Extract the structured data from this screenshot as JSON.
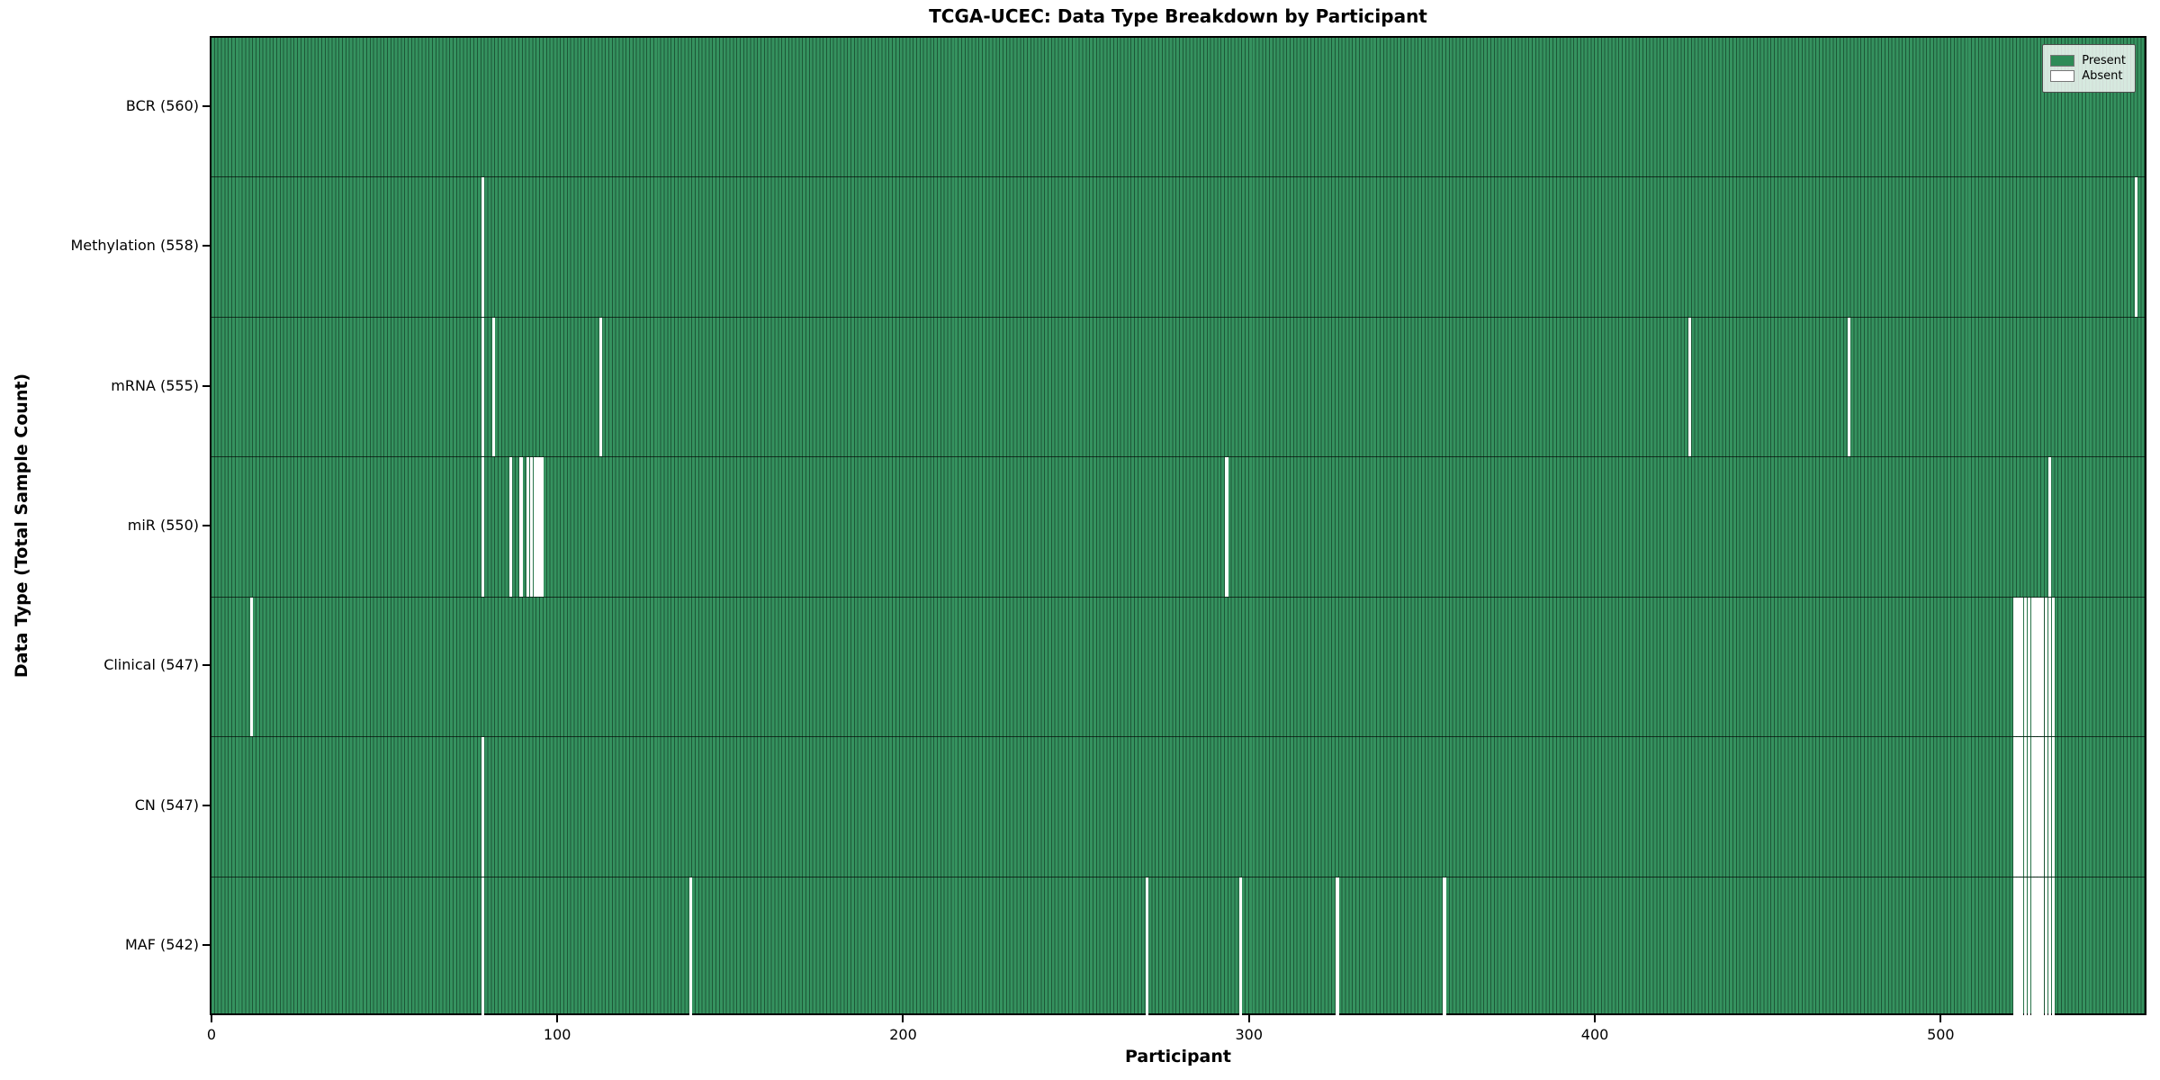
{
  "figure": {
    "title": "TCGA-UCEC: Data Type Breakdown by Participant",
    "xlabel": "Participant",
    "ylabel": "Data Type (Total Sample Count)"
  },
  "legend": {
    "position": "upper right",
    "items": [
      {
        "name": "present",
        "label": "Present",
        "color": "#2e8b57"
      },
      {
        "name": "absent",
        "label": "Absent",
        "color": "#ffffff"
      }
    ]
  },
  "chart_data": {
    "type": "heatmap",
    "title": "TCGA-UCEC: Data Type Breakdown by Participant",
    "xlabel": "Participant",
    "ylabel": "Data Type (Total Sample Count)",
    "x_ticks": [
      0,
      100,
      200,
      300,
      400,
      500
    ],
    "xlim": [
      -0.5,
      559.5
    ],
    "n_participants": 560,
    "grid": false,
    "colors": {
      "present": "#2e8b57",
      "absent": "#ffffff",
      "bar_edge": "#000000"
    },
    "legend_entries": [
      "Present",
      "Absent"
    ],
    "rows": [
      {
        "label": "BCR",
        "total": 560,
        "tick_label": "BCR (560)",
        "absent_participants": []
      },
      {
        "label": "Methylation",
        "total": 558,
        "tick_label": "Methylation (558)",
        "absent_participants": [
          78,
          556
        ]
      },
      {
        "label": "mRNA",
        "total": 555,
        "tick_label": "mRNA (555)",
        "absent_participants": [
          78,
          81,
          112,
          427,
          473
        ]
      },
      {
        "label": "miR",
        "total": 550,
        "tick_label": "miR (550)",
        "absent_participants": [
          78,
          86,
          89,
          91,
          92,
          93,
          94,
          95,
          293,
          531
        ]
      },
      {
        "label": "Clinical",
        "total": 547,
        "tick_label": "Clinical (547)",
        "absent_participants": [
          11,
          521,
          522,
          523,
          524,
          525,
          526,
          527,
          528,
          529,
          530,
          531,
          532
        ]
      },
      {
        "label": "CN",
        "total": 547,
        "tick_label": "CN (547)",
        "absent_participants": [
          78,
          521,
          522,
          523,
          524,
          525,
          526,
          527,
          528,
          529,
          530,
          531,
          532
        ]
      },
      {
        "label": "MAF",
        "total": 542,
        "tick_label": "MAF (542)",
        "absent_participants": [
          78,
          138,
          270,
          297,
          325,
          356,
          521,
          522,
          523,
          524,
          525,
          526,
          527,
          528,
          529,
          530,
          531,
          532
        ]
      }
    ]
  }
}
